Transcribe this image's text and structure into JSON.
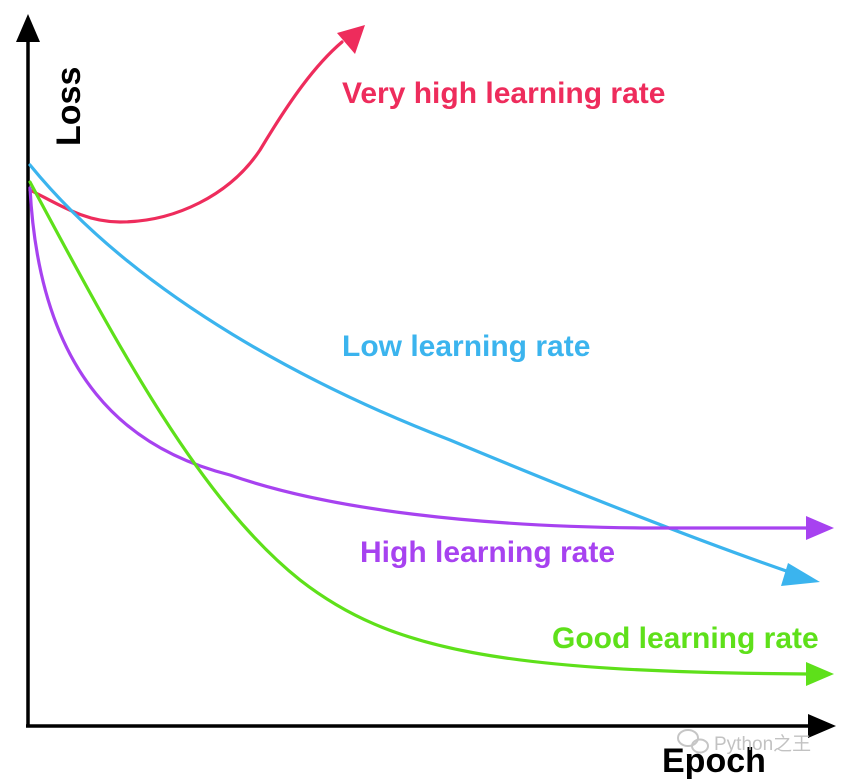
{
  "axes": {
    "y_label": "Loss",
    "x_label": "Epoch"
  },
  "curves": [
    {
      "id": "very-high",
      "label": "Very high learning rate",
      "color": "#ee2c5c"
    },
    {
      "id": "low",
      "label": "Low learning rate",
      "color": "#3bb4ee"
    },
    {
      "id": "high",
      "label": "High learning rate",
      "color": "#a742f0"
    },
    {
      "id": "good",
      "label": "Good learning rate",
      "color": "#5ee01a"
    }
  ],
  "watermark": {
    "text": "Python之王",
    "icon": "wechat-icon"
  }
}
